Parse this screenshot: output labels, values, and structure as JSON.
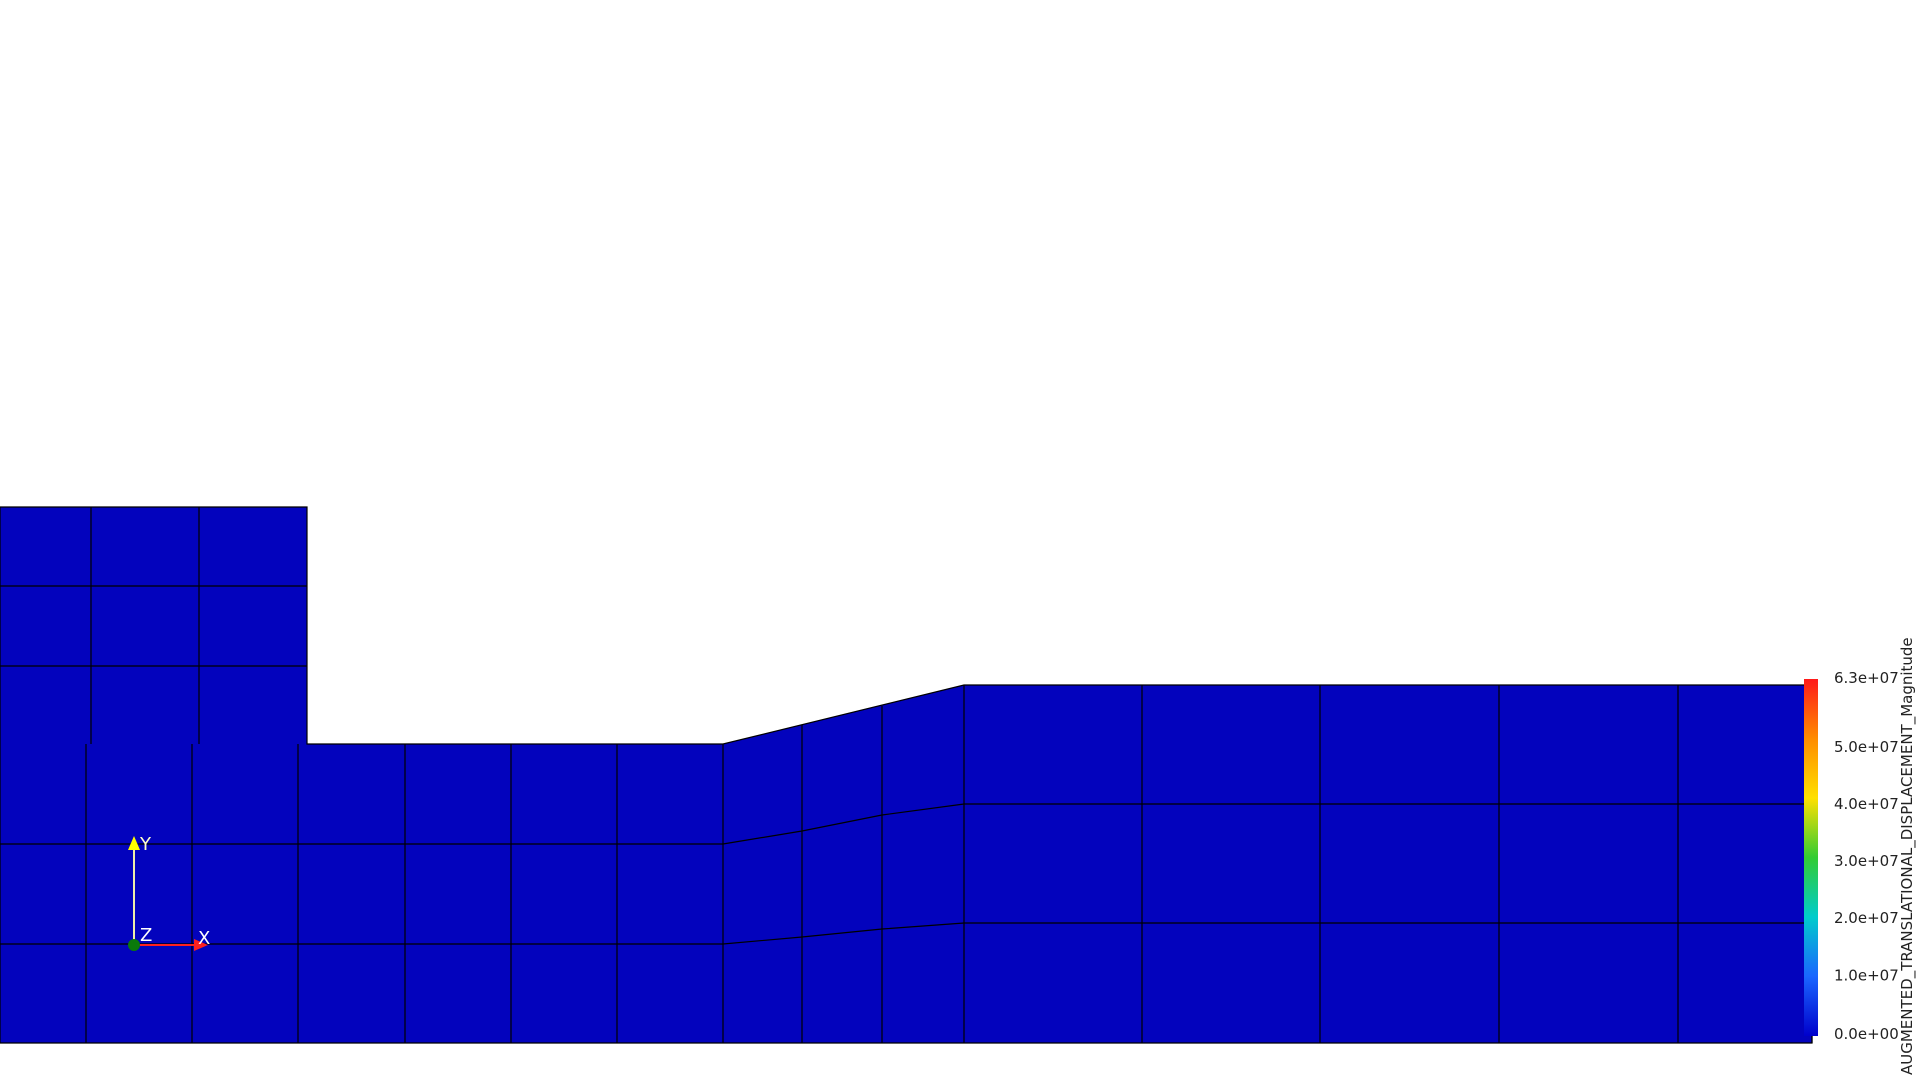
{
  "mesh": {
    "fill_color": "#0303bd",
    "edge_color": "#000000"
  },
  "orientation_axes": {
    "x_label": "X",
    "y_label": "Y",
    "z_label": "Z",
    "x_color": "#ff2020",
    "y_color": "#ffff00",
    "z_color": "#0a7a0a"
  },
  "scalar_bar": {
    "title": "AUGMENTED_TRANSLATIONAL_DISPLACEMENT_Magnitude",
    "max_label": "6.3e+07",
    "min_label": "0.0e+00",
    "tick_labels": [
      "5.0e+07",
      "4.0e+07",
      "3.0e+07",
      "2.0e+07",
      "1.0e+07"
    ],
    "colormap": [
      "#ff1a1a",
      "#ff8c00",
      "#ffe000",
      "#33cc33",
      "#00cccc",
      "#1a66ff",
      "#0000cc"
    ]
  }
}
